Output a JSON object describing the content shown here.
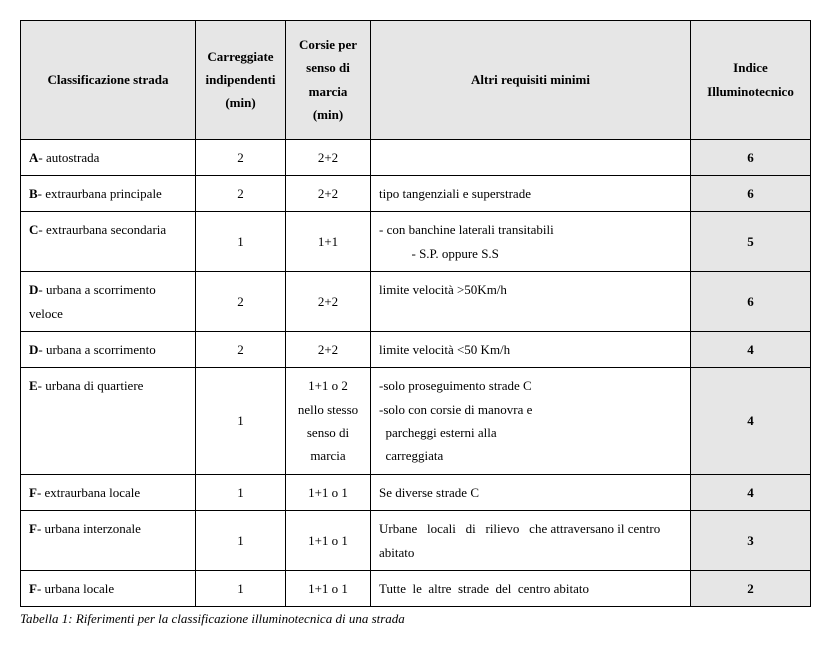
{
  "table": {
    "headers": {
      "classificazione": "Classificazione strada",
      "carreggiate": "Carreggiate indipendenti (min)",
      "corsie": "Corsie per senso di marcia (min)",
      "requisiti": "Altri requisiti minimi",
      "indice": "Indice Illuminotecnico"
    },
    "rows": [
      {
        "code": "A",
        "name": "- autostrada",
        "carreggiate": "2",
        "corsie": "2+2",
        "requisiti": "",
        "indice": "6"
      },
      {
        "code": "B",
        "name": "- extraurbana principale",
        "carreggiate": "2",
        "corsie": "2+2",
        "requisiti": "tipo tangenziali e superstrade",
        "indice": "6"
      },
      {
        "code": "C",
        "name": "- extraurbana secondaria",
        "carreggiate": "1",
        "corsie": "1+1",
        "requisiti": "- con banchine laterali transitabili\n          - S.P. oppure S.S",
        "indice": "5"
      },
      {
        "code": "D",
        "name": "- urbana a scorrimento veloce",
        "carreggiate": "2",
        "corsie": "2+2",
        "requisiti": "limite velocità >50Km/h",
        "indice": "6"
      },
      {
        "code": "D",
        "name": "- urbana a scorrimento",
        "carreggiate": "2",
        "corsie": "2+2",
        "requisiti": "limite velocità <50 Km/h",
        "indice": "4"
      },
      {
        "code": "E",
        "name": "- urbana di quartiere",
        "carreggiate": "1",
        "corsie": "1+1 o 2 nello stesso senso di marcia",
        "requisiti": "-solo proseguimento strade C\n-solo con corsie di manovra e\n  parcheggi esterni alla\n  carreggiata",
        "indice": "4"
      },
      {
        "code": "F",
        "name": "- extraurbana locale",
        "carreggiate": "1",
        "corsie": "1+1 o 1",
        "requisiti": "Se diverse strade C",
        "indice": "4"
      },
      {
        "code": "F",
        "name": "- urbana interzonale",
        "carreggiate": "1",
        "corsie": "1+1 o 1",
        "requisiti": "Urbane   locali   di   rilievo   che attraversano il centro abitato",
        "indice": "3"
      },
      {
        "code": "F",
        "name": "- urbana locale",
        "carreggiate": "1",
        "corsie": "1+1 o 1",
        "requisiti": "Tutte  le  altre  strade  del  centro abitato",
        "indice": "2"
      }
    ],
    "caption": "Tabella 1: Riferimenti per la classificazione illuminotecnica di una strada"
  }
}
